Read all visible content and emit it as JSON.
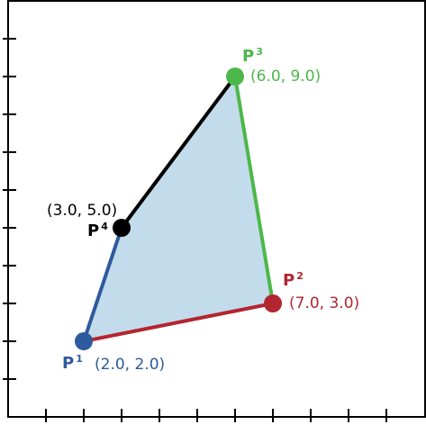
{
  "axes": {
    "xlim": [
      0,
      11
    ],
    "ylim": [
      0,
      11
    ],
    "x_ticks": [
      1,
      2,
      3,
      4,
      5,
      6,
      7,
      8,
      9,
      10
    ],
    "y_ticks": [
      1,
      2,
      3,
      4,
      5,
      6,
      7,
      8,
      9,
      10
    ],
    "frame_color": "#000000",
    "tick_color": "#000000"
  },
  "polygon": {
    "fill_color": "#c3dcec",
    "order": [
      "p1",
      "p2",
      "p3",
      "p4"
    ]
  },
  "points": [
    {
      "id": "p1",
      "base": "P",
      "sup": "1",
      "coord_text": "(2.0, 2.0)",
      "x": 2.0,
      "y": 2.0,
      "color": "#2e5a9e",
      "label_pos": "below-left"
    },
    {
      "id": "p2",
      "base": "P",
      "sup": "2",
      "coord_text": "(7.0, 3.0)",
      "x": 7.0,
      "y": 3.0,
      "color": "#b22630",
      "label_pos": "above-right"
    },
    {
      "id": "p3",
      "base": "P",
      "sup": "3",
      "coord_text": "(6.0, 9.0)",
      "x": 6.0,
      "y": 9.0,
      "color": "#4cb74a",
      "label_pos": "above"
    },
    {
      "id": "p4",
      "base": "P",
      "sup": "4",
      "coord_text": "(3.0, 5.0)",
      "x": 3.0,
      "y": 5.0,
      "color": "#000000",
      "label_pos": "left"
    }
  ],
  "edges": [
    {
      "id": "edge-p1-p2",
      "from": "p1",
      "to": "p2",
      "color": "#b22630"
    },
    {
      "id": "edge-p2-p3",
      "from": "p2",
      "to": "p3",
      "color": "#4cb74a"
    },
    {
      "id": "edge-p3-p4",
      "from": "p3",
      "to": "p4",
      "color": "#000000"
    },
    {
      "id": "edge-p4-p1",
      "from": "p4",
      "to": "p1",
      "color": "#2e5a9e"
    }
  ]
}
